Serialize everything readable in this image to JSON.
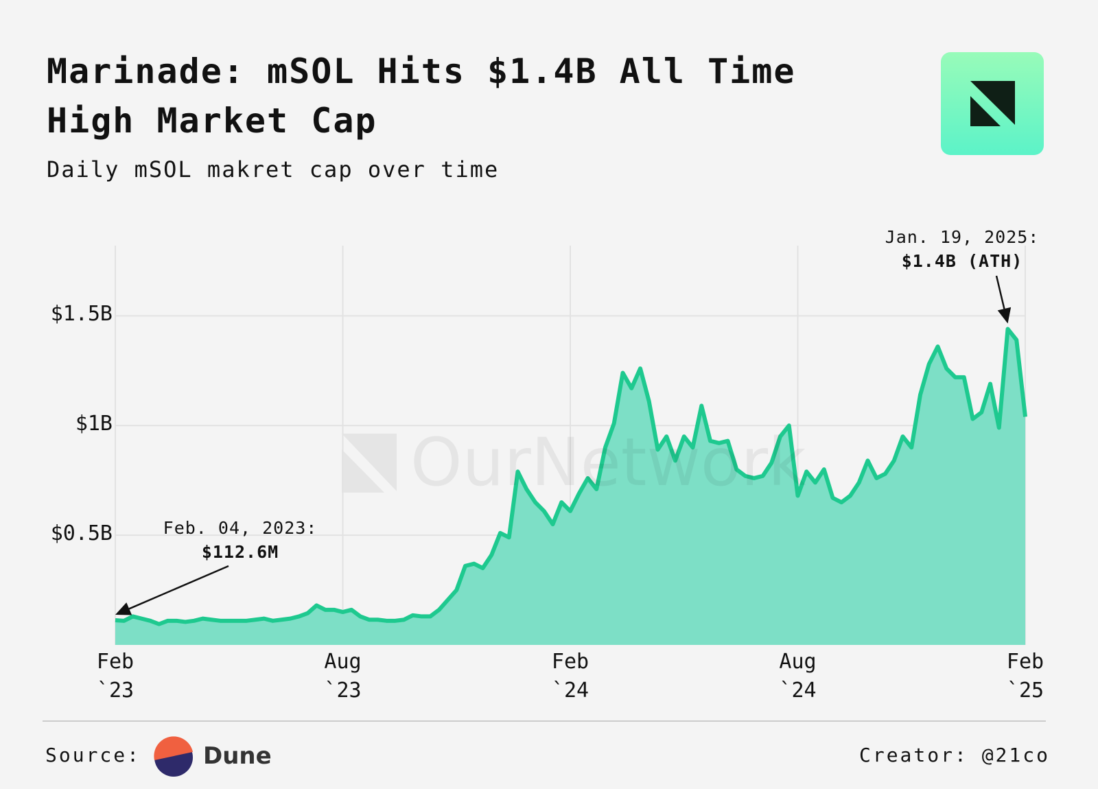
{
  "header": {
    "title": "Marinade: mSOL Hits $1.4B All Time High Market Cap",
    "subtitle": "Daily mSOL makret cap over time",
    "watermark": "OurNetwork"
  },
  "chart_data": {
    "type": "area",
    "categories": [
      "Feb `23",
      null,
      null,
      null,
      null,
      null,
      null,
      null,
      null,
      null,
      null,
      null,
      null,
      null,
      null,
      null,
      null,
      null,
      null,
      null,
      null,
      null,
      null,
      null,
      null,
      null,
      "Aug `23",
      null,
      null,
      null,
      null,
      null,
      null,
      null,
      null,
      null,
      null,
      null,
      null,
      null,
      null,
      null,
      null,
      null,
      null,
      null,
      null,
      null,
      null,
      null,
      null,
      null,
      "Feb `24",
      null,
      null,
      null,
      null,
      null,
      null,
      null,
      null,
      null,
      null,
      null,
      null,
      null,
      null,
      null,
      null,
      null,
      null,
      null,
      null,
      null,
      null,
      null,
      null,
      null,
      "Aug `24",
      null,
      null,
      null,
      null,
      null,
      null,
      null,
      null,
      null,
      null,
      null,
      null,
      null,
      null,
      null,
      null,
      null,
      null,
      null,
      null,
      null,
      null,
      null,
      null,
      null,
      "Feb `25"
    ],
    "series": [
      {
        "name": "mSOL market cap",
        "color": "#1ec98f",
        "values": [
          0.1126,
          0.11,
          0.13,
          0.12,
          0.11,
          0.095,
          0.11,
          0.11,
          0.105,
          0.11,
          0.12,
          0.115,
          0.11,
          0.11,
          0.11,
          0.11,
          0.115,
          0.12,
          0.11,
          0.115,
          0.12,
          0.13,
          0.145,
          0.18,
          0.16,
          0.16,
          0.15,
          0.16,
          0.13,
          0.115,
          0.115,
          0.11,
          0.11,
          0.115,
          0.135,
          0.13,
          0.13,
          0.16,
          0.205,
          0.25,
          0.36,
          0.37,
          0.35,
          0.41,
          0.51,
          0.49,
          0.79,
          0.71,
          0.65,
          0.61,
          0.55,
          0.65,
          0.61,
          0.69,
          0.76,
          0.71,
          0.9,
          1.01,
          1.24,
          1.17,
          1.26,
          1.11,
          0.89,
          0.95,
          0.84,
          0.95,
          0.9,
          1.09,
          0.93,
          0.92,
          0.93,
          0.8,
          0.77,
          0.76,
          0.77,
          0.83,
          0.95,
          1.0,
          0.68,
          0.79,
          0.74,
          0.8,
          0.67,
          0.65,
          0.68,
          0.74,
          0.84,
          0.76,
          0.78,
          0.84,
          0.95,
          0.9,
          1.14,
          1.28,
          1.36,
          1.26,
          1.22,
          1.22,
          1.03,
          1.06,
          1.19,
          0.99,
          1.44,
          1.39,
          1.04
        ]
      }
    ],
    "area_color": "#7ddfc6",
    "ylim": [
      0,
      1.82
    ],
    "yticks": [
      {
        "value": 0.5,
        "label": "$0.5B"
      },
      {
        "value": 1,
        "label": "$1B"
      },
      {
        "value": 1.5,
        "label": "$1.5B"
      }
    ],
    "grid": true,
    "annotations": [
      {
        "index": 0,
        "text": "Feb. 04, 2023:",
        "value_text": "$112.6M"
      },
      {
        "index": 102,
        "text": "Jan. 19, 2025:",
        "value_text": "$1.4B (ATH)"
      }
    ]
  },
  "footer": {
    "source_label": "Source:",
    "source_name": "Dune",
    "creator": "Creator: @21co"
  }
}
